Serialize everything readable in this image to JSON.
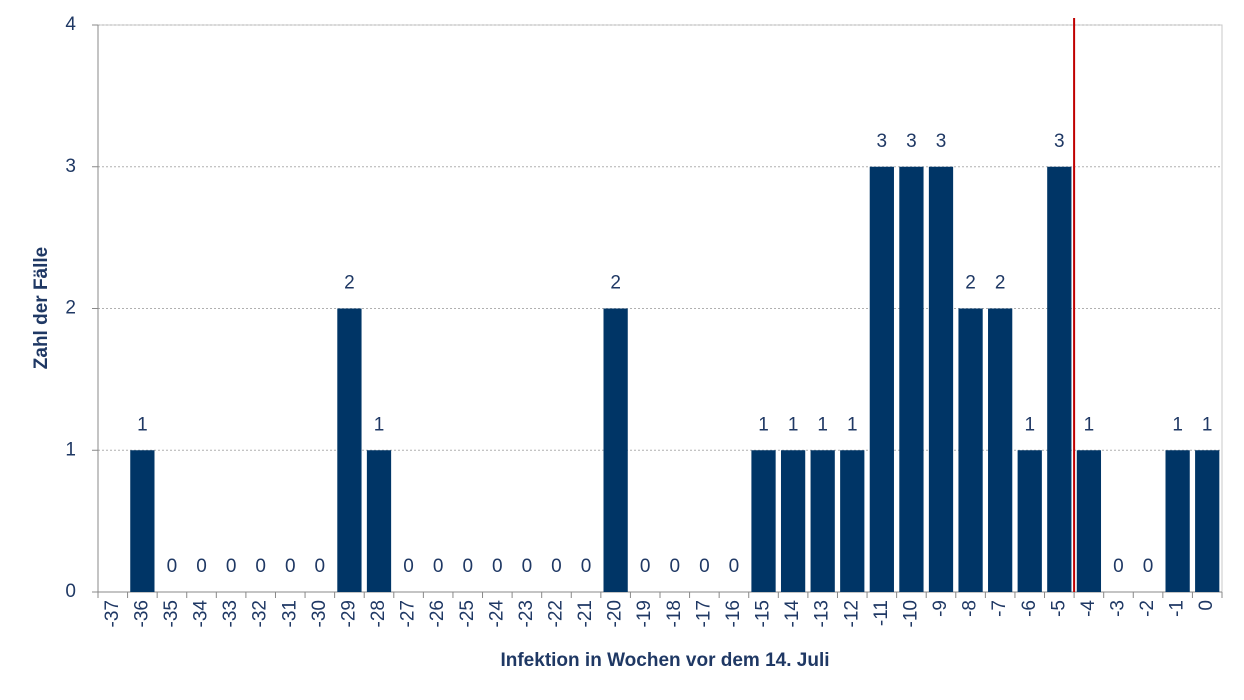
{
  "chart_data": {
    "type": "bar",
    "x_label": "Infektion in Wochen vor dem 14. Juli",
    "y_label": "Zahl der Fälle",
    "categories": [
      "-37",
      "-36",
      "-35",
      "-34",
      "-33",
      "-32",
      "-31",
      "-30",
      "-29",
      "-28",
      "-27",
      "-26",
      "-25",
      "-24",
      "-23",
      "-22",
      "-21",
      "-20",
      "-19",
      "-18",
      "-17",
      "-16",
      "-15",
      "-14",
      "-13",
      "-12",
      "-11",
      "-10",
      "-9",
      "-8",
      "-7",
      "-6",
      "-5",
      "-4",
      "-3",
      "-2",
      "-1",
      "0"
    ],
    "values": [
      null,
      1,
      0,
      0,
      0,
      0,
      0,
      0,
      2,
      1,
      0,
      0,
      0,
      0,
      0,
      0,
      0,
      2,
      0,
      0,
      0,
      0,
      1,
      1,
      1,
      1,
      3,
      3,
      3,
      2,
      2,
      1,
      3,
      1,
      0,
      0,
      1,
      1
    ],
    "color": "#003566",
    "ylim": [
      0,
      4
    ],
    "yticks": [
      0,
      1,
      2,
      3,
      4
    ],
    "grid": true
  }
}
